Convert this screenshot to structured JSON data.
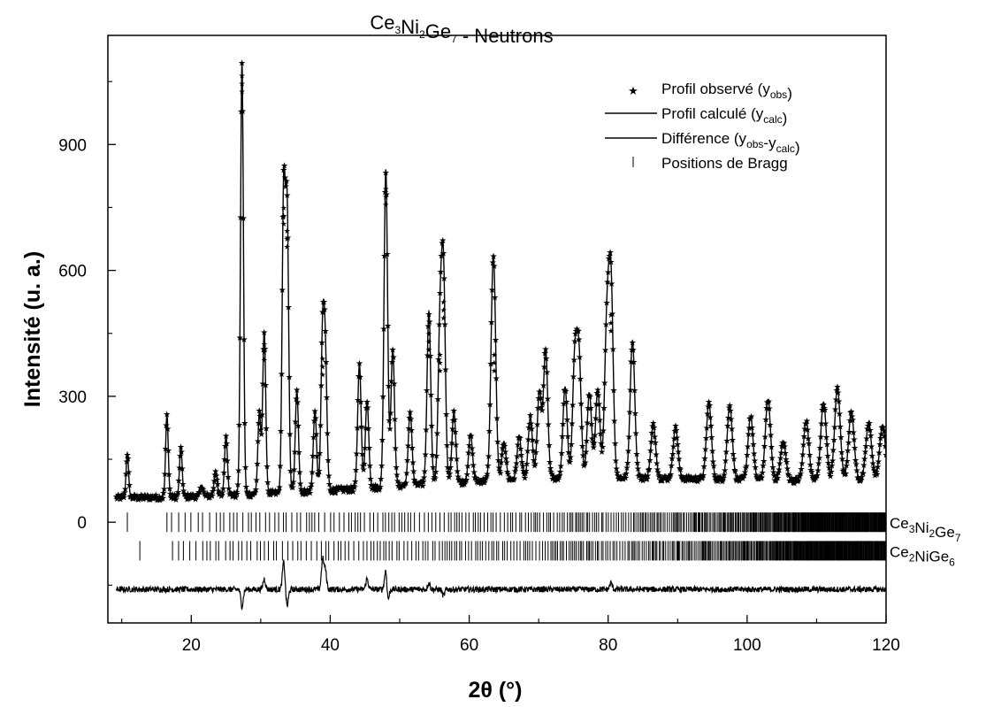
{
  "chart_data": {
    "type": "line",
    "title": {
      "base": "Ce",
      "parts": [
        [
          "3",
          "sub"
        ],
        [
          "Ni",
          ""
        ],
        [
          "2",
          "sub"
        ],
        [
          "Ge",
          ""
        ],
        [
          "7",
          "sub"
        ],
        [
          " - Neutrons",
          ""
        ]
      ]
    },
    "xlabel": "2θ (°)",
    "ylabel": "Intensité (u. a.)",
    "xlim": [
      8,
      120
    ],
    "ylim": [
      -240,
      1160
    ],
    "x_ticks": [
      20,
      40,
      60,
      80,
      100,
      120
    ],
    "y_ticks": [
      0,
      300,
      600,
      900
    ],
    "grid": false,
    "legend_position": "top-right",
    "colors": {
      "series": "#000000",
      "background": "#ffffff"
    },
    "series": [
      {
        "name": "Profil observé (y_obs)",
        "marker": "star",
        "baseline": 60,
        "peaks": [
          [
            10.8,
            165
          ],
          [
            16.5,
            255
          ],
          [
            18.5,
            175
          ],
          [
            21.5,
            85
          ],
          [
            23.5,
            120
          ],
          [
            25,
            200
          ],
          [
            27.3,
            1085
          ],
          [
            29.8,
            250
          ],
          [
            30.5,
            445
          ],
          [
            33.3,
            770
          ],
          [
            33.8,
            715
          ],
          [
            35.2,
            300
          ],
          [
            37.8,
            250
          ],
          [
            38.9,
            410
          ],
          [
            39.3,
            355
          ],
          [
            44.2,
            355
          ],
          [
            45.3,
            265
          ],
          [
            48.0,
            815
          ],
          [
            49,
            385
          ],
          [
            51.5,
            235
          ],
          [
            54.2,
            470
          ],
          [
            55.8,
            420
          ],
          [
            56.3,
            545
          ],
          [
            57.8,
            225
          ],
          [
            60.2,
            170
          ],
          [
            63.3,
            310
          ],
          [
            63.6,
            420
          ],
          [
            65,
            150
          ],
          [
            67.2,
            160
          ],
          [
            68.8,
            205
          ],
          [
            70.1,
            265
          ],
          [
            71,
            365
          ],
          [
            73.8,
            275
          ],
          [
            75.2,
            335
          ],
          [
            75.8,
            340
          ],
          [
            77.3,
            260
          ],
          [
            78.5,
            265
          ],
          [
            79.8,
            400
          ],
          [
            80.4,
            515
          ],
          [
            83.5,
            385
          ],
          [
            86.5,
            185
          ],
          [
            89.7,
            180
          ],
          [
            94.5,
            240
          ],
          [
            97.5,
            235
          ],
          [
            100.5,
            210
          ],
          [
            103.0,
            250
          ],
          [
            105.2,
            150
          ],
          [
            108.5,
            200
          ],
          [
            111.0,
            245
          ],
          [
            113.0,
            280
          ],
          [
            115.0,
            220
          ],
          [
            117.5,
            195
          ],
          [
            119.5,
            190
          ]
        ]
      },
      {
        "name": "Profil calculé (y_calc)",
        "marker": "line"
      },
      {
        "name": "Différence (y_obs-y_calc)",
        "marker": "line",
        "offset": -160,
        "spikes": [
          [
            27.3,
            -40
          ],
          [
            30.5,
            25
          ],
          [
            33.3,
            65
          ],
          [
            33.8,
            -40
          ],
          [
            38.9,
            70
          ],
          [
            39.3,
            45
          ],
          [
            45.3,
            25
          ],
          [
            48.0,
            50
          ],
          [
            48.3,
            -30
          ],
          [
            54.2,
            15
          ],
          [
            56.3,
            -15
          ],
          [
            80.4,
            15
          ]
        ]
      },
      {
        "name": "Positions de Bragg",
        "marker": "tick"
      }
    ],
    "phases": [
      {
        "name_parts": [
          [
            "Ce",
            ""
          ],
          [
            "3",
            "sub"
          ],
          [
            "Ni",
            ""
          ],
          [
            "2",
            "sub"
          ],
          [
            "Ge",
            ""
          ],
          [
            "7",
            "sub"
          ]
        ],
        "y": 0,
        "first_reflection": 10.8,
        "second_reflection": 16.5
      },
      {
        "name_parts": [
          [
            "Ce",
            ""
          ],
          [
            "2",
            "sub"
          ],
          [
            "NiGe",
            ""
          ],
          [
            "6",
            "sub"
          ]
        ],
        "y": -68,
        "first_reflection": 12.6,
        "second_reflection": 17.3
      }
    ],
    "legend": [
      {
        "symbol": "star",
        "parts": [
          [
            "Profil observé (y",
            ""
          ],
          [
            "obs",
            "sub"
          ],
          [
            ")",
            ""
          ]
        ]
      },
      {
        "symbol": "line",
        "parts": [
          [
            "Profil calculé (y",
            ""
          ],
          [
            "calc",
            "sub"
          ],
          [
            ")",
            ""
          ]
        ]
      },
      {
        "symbol": "line",
        "parts": [
          [
            "Différence (y",
            ""
          ],
          [
            "obs",
            "sub"
          ],
          [
            "-y",
            ""
          ],
          [
            "calc",
            "sub"
          ],
          [
            ")",
            ""
          ]
        ]
      },
      {
        "symbol": "tick",
        "parts": [
          [
            "Positions de Bragg",
            ""
          ]
        ]
      }
    ]
  }
}
